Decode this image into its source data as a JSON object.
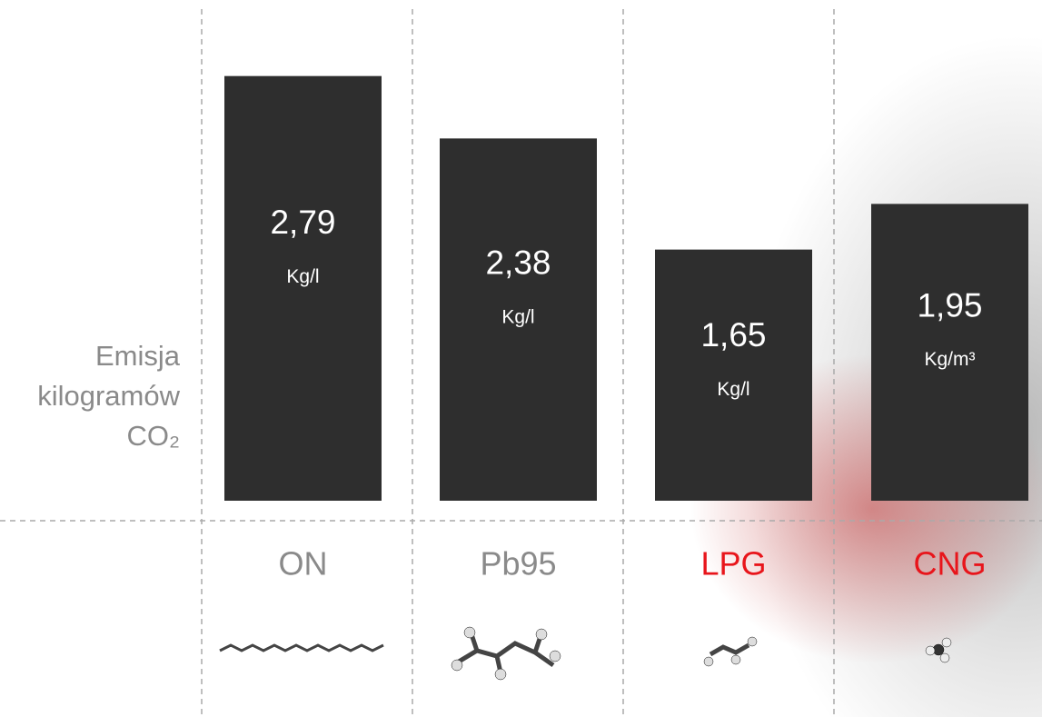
{
  "chart_data": {
    "type": "bar",
    "y_label": [
      "Emisja",
      "kilogramów",
      "CO₂"
    ],
    "categories": [
      "ON",
      "Pb95",
      "LPG",
      "CNG"
    ],
    "category_colors": [
      "#8a8a8a",
      "#8a8a8a",
      "#e8151b",
      "#e8151b"
    ],
    "values": [
      2.79,
      2.38,
      1.65,
      1.95
    ],
    "value_labels": [
      "2,79",
      "2,38",
      "1,65",
      "1,95"
    ],
    "units": [
      "Kg/l",
      "Kg/l",
      "Kg/l",
      "Kg/m³"
    ],
    "color": "#2e2e2e"
  }
}
